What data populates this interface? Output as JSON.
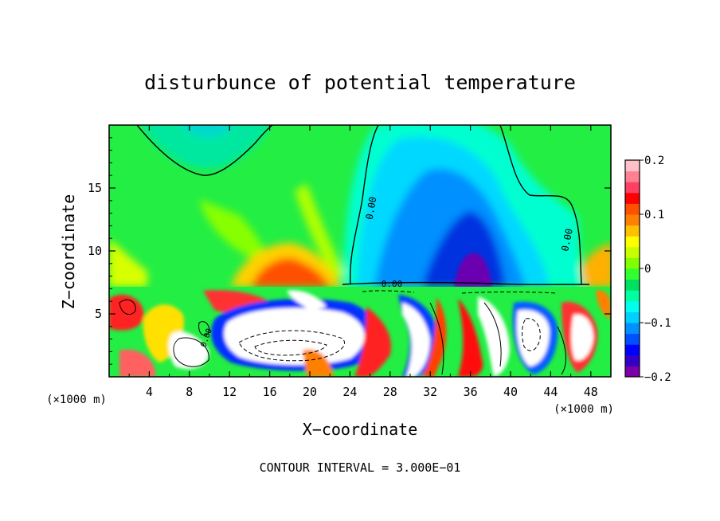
{
  "chart_data": {
    "type": "heatmap",
    "title": "disturbunce of potential temperature",
    "xlabel": "X−coordinate",
    "ylabel": "Z−coordinate",
    "x_unit_left": "(×1000 m)",
    "x_unit_right": "(×1000 m)",
    "x_range": [
      0,
      50
    ],
    "y_range": [
      0,
      20
    ],
    "x_ticks": [
      4,
      8,
      12,
      16,
      20,
      24,
      28,
      32,
      36,
      40,
      44,
      48
    ],
    "x_tick_labels": [
      "4",
      "8",
      "12",
      "16",
      "20",
      "24",
      "28",
      "32",
      "36",
      "40",
      "44",
      "48"
    ],
    "y_ticks": [
      5,
      10,
      15
    ],
    "y_tick_labels": [
      "5",
      "10",
      "15"
    ],
    "colorbar": {
      "range": [
        -0.2,
        0.2
      ],
      "ticks": [
        0.2,
        0.1,
        0,
        -0.1,
        -0.2
      ],
      "tick_labels": [
        "0.2",
        "0.1",
        "0",
        "−0.1",
        "−0.2"
      ],
      "colors": [
        "#7b00a8",
        "#3400c8",
        "#0000ff",
        "#0050ff",
        "#0090ff",
        "#00d0ff",
        "#00ffee",
        "#00ffa0",
        "#00e060",
        "#30ff30",
        "#80ff00",
        "#c8ff00",
        "#ffff00",
        "#ffc000",
        "#ff8000",
        "#ff5000",
        "#ff0000",
        "#ff4060",
        "#ff8090",
        "#ffc0c8"
      ]
    },
    "contour_labels": [
      "0.00",
      "0.00",
      "0.00",
      "0.00",
      "0.00"
    ],
    "footnote": "CONTOUR INTERVAL = 3.000E−01"
  }
}
